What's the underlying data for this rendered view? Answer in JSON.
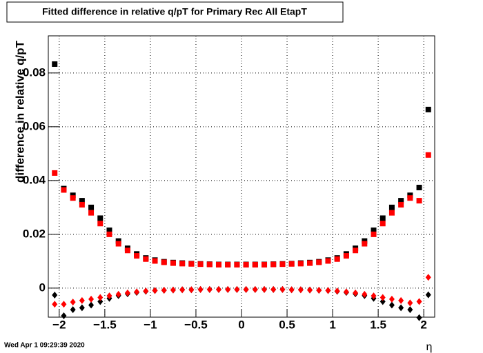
{
  "chart_data": {
    "type": "scatter",
    "title": "Fitted difference in relative q/pT  for Primary Rec All EtapT",
    "y_label": "difference in relative q/pT",
    "x_label": "η",
    "timestamp": "Wed Apr  1 09:29:39 2020",
    "x": [
      -2.05,
      -1.95,
      -1.85,
      -1.75,
      -1.65,
      -1.55,
      -1.45,
      -1.35,
      -1.25,
      -1.15,
      -1.05,
      -0.95,
      -0.85,
      -0.75,
      -0.65,
      -0.55,
      -0.45,
      -0.35,
      -0.25,
      -0.15,
      -0.05,
      0.05,
      0.15,
      0.25,
      0.35,
      0.45,
      0.55,
      0.65,
      0.75,
      0.85,
      0.95,
      1.05,
      1.15,
      1.25,
      1.35,
      1.45,
      1.55,
      1.65,
      1.75,
      1.85,
      1.95,
      2.05
    ],
    "series": [
      {
        "color": "#000000",
        "marker": "square",
        "values": [
          0.0833,
          0.037,
          0.0345,
          0.0325,
          0.03,
          0.026,
          0.0215,
          0.0175,
          0.0148,
          0.0127,
          0.0112,
          0.0104,
          0.0098,
          0.0095,
          0.0093,
          0.0091,
          0.009,
          0.0089,
          0.0088,
          0.0088,
          0.0088,
          0.0088,
          0.0088,
          0.0088,
          0.0089,
          0.009,
          0.0091,
          0.0093,
          0.0095,
          0.0098,
          0.0104,
          0.0112,
          0.0127,
          0.0148,
          0.0175,
          0.0215,
          0.026,
          0.03,
          0.0325,
          0.0345,
          0.0374,
          0.0664
        ]
      },
      {
        "color": "#000000",
        "marker": "diamond",
        "values": [
          -0.0026,
          -0.0103,
          -0.008,
          -0.0073,
          -0.0063,
          -0.005,
          -0.0038,
          -0.0028,
          -0.0021,
          -0.0016,
          -0.0012,
          -0.0009,
          -0.0008,
          -0.0007,
          -0.0006,
          -0.0006,
          -0.0005,
          -0.0005,
          -0.0005,
          -0.0005,
          -0.0005,
          -0.0005,
          -0.0005,
          -0.0005,
          -0.0005,
          -0.0005,
          -0.0006,
          -0.0006,
          -0.0007,
          -0.0008,
          -0.0009,
          -0.0012,
          -0.0016,
          -0.0021,
          -0.0028,
          -0.0038,
          -0.005,
          -0.0063,
          -0.0073,
          -0.008,
          -0.011,
          -0.0025
        ]
      },
      {
        "color": "#ff0000",
        "marker": "square",
        "values": [
          0.0428,
          0.0365,
          0.0335,
          0.031,
          0.028,
          0.024,
          0.02,
          0.0165,
          0.014,
          0.012,
          0.0108,
          0.0101,
          0.0096,
          0.0093,
          0.0091,
          0.009,
          0.0089,
          0.0088,
          0.0087,
          0.0087,
          0.0087,
          0.0087,
          0.0087,
          0.0087,
          0.0088,
          0.0089,
          0.009,
          0.0091,
          0.0093,
          0.0096,
          0.0101,
          0.0108,
          0.012,
          0.014,
          0.0165,
          0.02,
          0.024,
          0.028,
          0.031,
          0.0335,
          0.0325,
          0.0495
        ]
      },
      {
        "color": "#ff0000",
        "marker": "diamond",
        "values": [
          -0.006,
          -0.006,
          -0.0052,
          -0.0046,
          -0.0041,
          -0.0035,
          -0.0029,
          -0.0023,
          -0.0018,
          -0.0014,
          -0.0011,
          -0.0009,
          -0.0008,
          -0.0007,
          -0.0006,
          -0.0006,
          -0.0005,
          -0.0005,
          -0.0005,
          -0.0005,
          -0.0005,
          -0.0005,
          -0.0005,
          -0.0005,
          -0.0005,
          -0.0005,
          -0.0006,
          -0.0006,
          -0.0007,
          -0.0008,
          -0.0009,
          -0.0011,
          -0.0014,
          -0.0018,
          -0.0023,
          -0.0029,
          -0.0035,
          -0.0041,
          -0.0046,
          -0.0055,
          -0.005,
          0.004
        ]
      }
    ],
    "xlim": [
      -2.12,
      2.12
    ],
    "ylim": [
      -0.0108,
      0.0938
    ],
    "xticks": [
      {
        "value": -2,
        "label": "−2"
      },
      {
        "value": -1.5,
        "label": "−1.5"
      },
      {
        "value": -1,
        "label": "−1"
      },
      {
        "value": -0.5,
        "label": "−0.5"
      },
      0,
      0.5,
      1,
      1.5,
      2
    ],
    "yticks": [
      0,
      0.02,
      0.04,
      0.06,
      0.08
    ],
    "grid": true
  }
}
